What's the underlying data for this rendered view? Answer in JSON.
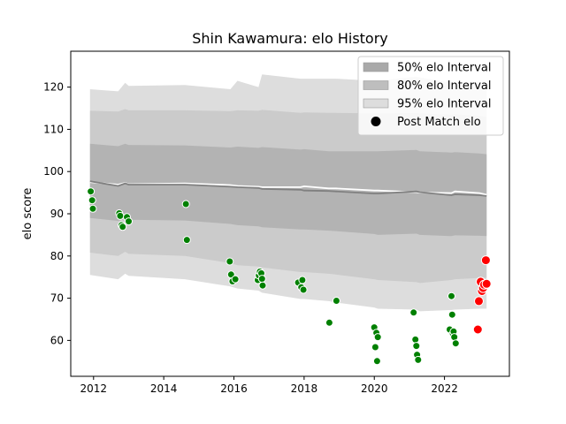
{
  "chart_data": {
    "type": "scatter",
    "title": "Shin Kawamura: elo History",
    "xlabel": "",
    "ylabel": "elo score",
    "xlim": [
      2011.35,
      2023.85
    ],
    "ylim": [
      51.5,
      128.5
    ],
    "x_ticks": [
      2012,
      2014,
      2016,
      2018,
      2020,
      2022
    ],
    "y_ticks": [
      60,
      70,
      80,
      90,
      100,
      110,
      120
    ],
    "grid": false,
    "legend_position": "top-right",
    "legend": [
      {
        "label": "50% elo Interval",
        "kind": "band",
        "color": "#a9a9a9"
      },
      {
        "label": "80% elo Interval",
        "kind": "band",
        "color": "#bebebe"
      },
      {
        "label": "95% elo Interval",
        "kind": "band",
        "color": "#dddddd"
      },
      {
        "label": "Post Match elo",
        "kind": "marker",
        "color": "#000000"
      }
    ],
    "mean_line": {
      "x": [
        2011.9,
        2012.7,
        2012.9,
        2013.0,
        2014.6,
        2015.9,
        2016.1,
        2016.7,
        2016.8,
        2017.9,
        2018.0,
        2018.7,
        2018.9,
        2020.0,
        2020.1,
        2021.2,
        2021.3,
        2022.2,
        2022.3,
        2023.0,
        2023.2
      ],
      "y": [
        97.7,
        96.6,
        97.2,
        96.9,
        96.9,
        96.4,
        96.3,
        96.1,
        95.9,
        95.7,
        95.5,
        95.4,
        95.3,
        94.8,
        94.8,
        95.3,
        95.1,
        94.4,
        94.6,
        94.4,
        94.2
      ]
    },
    "white_line": {
      "x": [
        2011.9,
        2012.7,
        2012.9,
        2013.0,
        2014.6,
        2015.9,
        2016.1,
        2016.7,
        2016.8,
        2017.9,
        2018.0,
        2018.7,
        2018.9,
        2020.0,
        2020.1,
        2021.2,
        2021.3,
        2022.2,
        2022.3,
        2023.0,
        2023.2
      ],
      "y": [
        97.5,
        96.9,
        97.3,
        97.0,
        97.2,
        96.8,
        96.6,
        96.4,
        96.3,
        96.3,
        96.5,
        96.0,
        96.0,
        95.5,
        95.5,
        95.1,
        95.0,
        94.9,
        95.3,
        94.9,
        94.5
      ]
    },
    "bands": [
      {
        "name": "95% elo Interval",
        "color": "#dddddd",
        "x": [
          2011.9,
          2012.7,
          2012.9,
          2013.0,
          2014.6,
          2015.9,
          2016.1,
          2016.7,
          2016.8,
          2017.9,
          2018.0,
          2018.7,
          2018.9,
          2020.0,
          2020.1,
          2021.2,
          2021.3,
          2022.2,
          2022.3,
          2023.0,
          2023.2
        ],
        "upper": [
          119.5,
          119.0,
          121.0,
          120.3,
          120.5,
          119.5,
          121.5,
          120.0,
          123.0,
          122.0,
          122.0,
          122.0,
          122.0,
          121.5,
          121.5,
          122.5,
          122.3,
          121.0,
          121.3,
          121.0,
          120.5
        ],
        "lower": [
          75.5,
          74.5,
          75.8,
          75.3,
          74.5,
          72.8,
          72.3,
          71.8,
          71.3,
          69.8,
          69.8,
          69.3,
          69.0,
          67.8,
          67.5,
          67.3,
          66.9,
          67.2,
          67.3,
          67.5,
          67.5
        ]
      },
      {
        "name": "80% elo Interval",
        "color": "#cbcbcb",
        "x": [
          2011.9,
          2012.7,
          2012.9,
          2013.0,
          2014.6,
          2015.9,
          2016.1,
          2016.7,
          2016.8,
          2017.9,
          2018.0,
          2018.7,
          2018.9,
          2020.0,
          2020.1,
          2021.2,
          2021.3,
          2022.2,
          2022.3,
          2023.0,
          2023.2
        ],
        "upper": [
          114.4,
          114.2,
          114.8,
          114.5,
          114.5,
          114.3,
          114.5,
          114.4,
          114.6,
          113.9,
          114.0,
          113.9,
          113.9,
          113.8,
          113.8,
          113.9,
          113.8,
          113.5,
          113.6,
          113.2,
          112.9
        ],
        "lower": [
          80.8,
          80.0,
          81.0,
          80.5,
          80.0,
          78.3,
          77.8,
          77.5,
          77.3,
          76.2,
          76.2,
          75.8,
          75.6,
          74.5,
          74.3,
          73.8,
          73.6,
          74.3,
          74.5,
          74.8,
          74.8
        ]
      },
      {
        "name": "50% elo Interval",
        "color": "#b3b3b3",
        "x": [
          2011.9,
          2012.7,
          2012.9,
          2013.0,
          2014.6,
          2015.9,
          2016.1,
          2016.7,
          2016.8,
          2017.9,
          2018.0,
          2018.7,
          2018.9,
          2020.0,
          2020.1,
          2021.2,
          2021.3,
          2022.2,
          2022.3,
          2023.0,
          2023.2
        ],
        "upper": [
          106.6,
          106.0,
          106.6,
          106.3,
          106.2,
          105.7,
          105.9,
          105.6,
          105.8,
          105.2,
          105.3,
          104.8,
          104.8,
          104.8,
          104.8,
          105.1,
          104.8,
          104.5,
          104.6,
          104.3,
          104.1
        ],
        "lower": [
          89.0,
          88.3,
          88.8,
          88.6,
          88.4,
          87.6,
          87.3,
          87.0,
          86.8,
          86.3,
          86.3,
          86.0,
          85.9,
          85.2,
          85.0,
          85.3,
          85.0,
          84.7,
          84.9,
          84.8,
          84.7
        ]
      }
    ],
    "series": [
      {
        "name": "Post Match elo",
        "color": "#008000",
        "x": [
          2011.92,
          2011.96,
          2011.98,
          2012.73,
          2012.76,
          2012.8,
          2012.83,
          2012.95,
          2013.0,
          2014.63,
          2014.66,
          2015.88,
          2015.92,
          2015.96,
          2016.04,
          2016.68,
          2016.71,
          2016.74,
          2016.78,
          2016.8,
          2016.82,
          2017.83,
          2017.92,
          2017.95,
          2017.98,
          2018.72,
          2018.92,
          2020.0,
          2020.03,
          2020.06,
          2020.08,
          2020.1,
          2021.12,
          2021.17,
          2021.2,
          2021.22,
          2021.25,
          2022.15,
          2022.2,
          2022.22,
          2022.24,
          2022.26,
          2022.28,
          2022.32
        ],
        "y": [
          95.3,
          93.2,
          91.2,
          90.1,
          89.5,
          87.3,
          86.9,
          89.2,
          88.2,
          92.3,
          83.8,
          78.7,
          75.6,
          74.0,
          74.5,
          74.3,
          75.4,
          76.3,
          75.9,
          74.6,
          73.0,
          73.7,
          72.6,
          74.3,
          72.0,
          64.2,
          69.4,
          63.1,
          58.4,
          61.8,
          55.1,
          60.8,
          66.6,
          60.2,
          58.7,
          56.6,
          55.4,
          62.6,
          70.5,
          66.1,
          61.6,
          62.1,
          60.8,
          59.3
        ]
      },
      {
        "name": "Post Match elo (recent)",
        "color": "#ff0000",
        "x": [
          2022.95,
          2022.98,
          2023.03,
          2023.07,
          2023.1,
          2023.13,
          2023.18,
          2023.2
        ],
        "y": [
          62.6,
          69.3,
          73.9,
          71.7,
          72.4,
          73.2,
          79.0,
          73.4
        ]
      }
    ]
  }
}
